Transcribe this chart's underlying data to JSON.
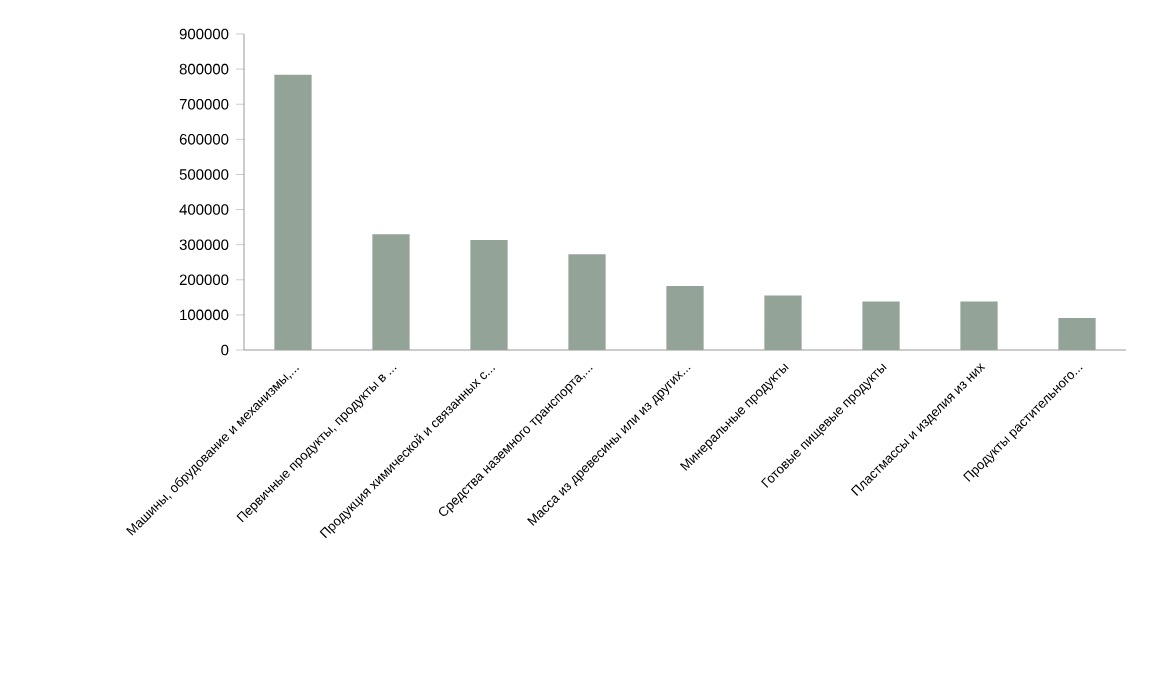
{
  "chart_data": {
    "type": "bar",
    "categories": [
      "Машины, обрудование и механизмы,...",
      "Первичные продукты, продукты в ...",
      "Продукция химической и связанных с...",
      "Средства наземного транспорта,...",
      "Масса из древесины или из других...",
      "Минеральные продукты",
      "Готовые пищевые продукты",
      "Пластмассы и изделия из них",
      "Продукты растительного..."
    ],
    "values": [
      784000,
      330000,
      313000,
      273000,
      182000,
      155000,
      138000,
      138000,
      91000
    ],
    "color": "#93a397",
    "ylim": [
      0,
      900000
    ],
    "yticks": [
      0,
      100000,
      200000,
      300000,
      400000,
      500000,
      600000,
      700000,
      800000,
      900000
    ],
    "grid": false
  }
}
